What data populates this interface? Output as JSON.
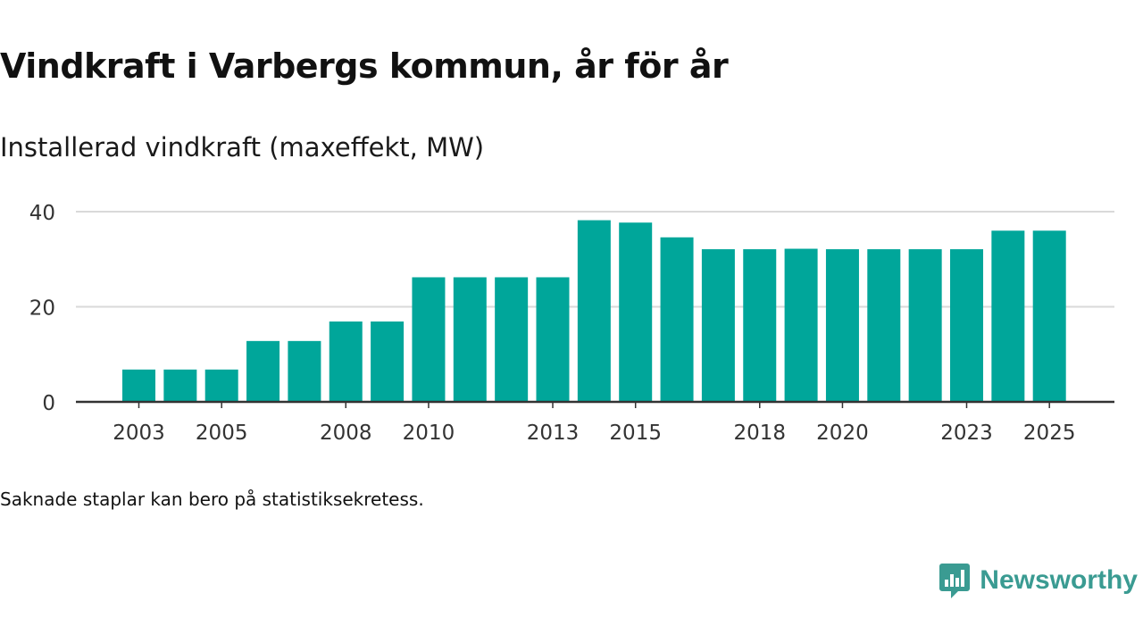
{
  "title": "Vindkraft i Varbergs kommun, år för år",
  "subtitle": "Installerad vindkraft (maxeffekt, MW)",
  "footnote": "Saknade staplar kan bero på statistiksekretess.",
  "brand": {
    "name": "Newsworthy",
    "icon": "newsworthy-logo-icon",
    "color": "#3a9b92"
  },
  "colors": {
    "bar": "#00a69a",
    "grid": "#d9d9d9",
    "axis": "#333333",
    "tick_text": "#333333"
  },
  "chart_data": {
    "type": "bar",
    "title": "Installerad vindkraft (maxeffekt, MW)",
    "xlabel": "",
    "ylabel": "",
    "categories": [
      "2003",
      "2004",
      "2005",
      "2006",
      "2007",
      "2008",
      "2009",
      "2010",
      "2011",
      "2012",
      "2013",
      "2014",
      "2015",
      "2016",
      "2017",
      "2018",
      "2019",
      "2020",
      "2021",
      "2022",
      "2023",
      "2024",
      "2025"
    ],
    "values": [
      6.8,
      6.8,
      6.8,
      12.8,
      12.8,
      16.9,
      16.9,
      26.2,
      26.2,
      26.2,
      26.2,
      38.2,
      37.7,
      34.6,
      32.1,
      32.1,
      32.2,
      32.1,
      32.1,
      32.1,
      32.1,
      36.0,
      36.0
    ],
    "x_tick_labels": [
      "2003",
      "2005",
      "2008",
      "2010",
      "2013",
      "2015",
      "2018",
      "2020",
      "2023",
      "2025"
    ],
    "y_ticks": [
      0,
      20,
      40
    ],
    "ylim": [
      0,
      40
    ],
    "grid": true,
    "legend": "none"
  }
}
